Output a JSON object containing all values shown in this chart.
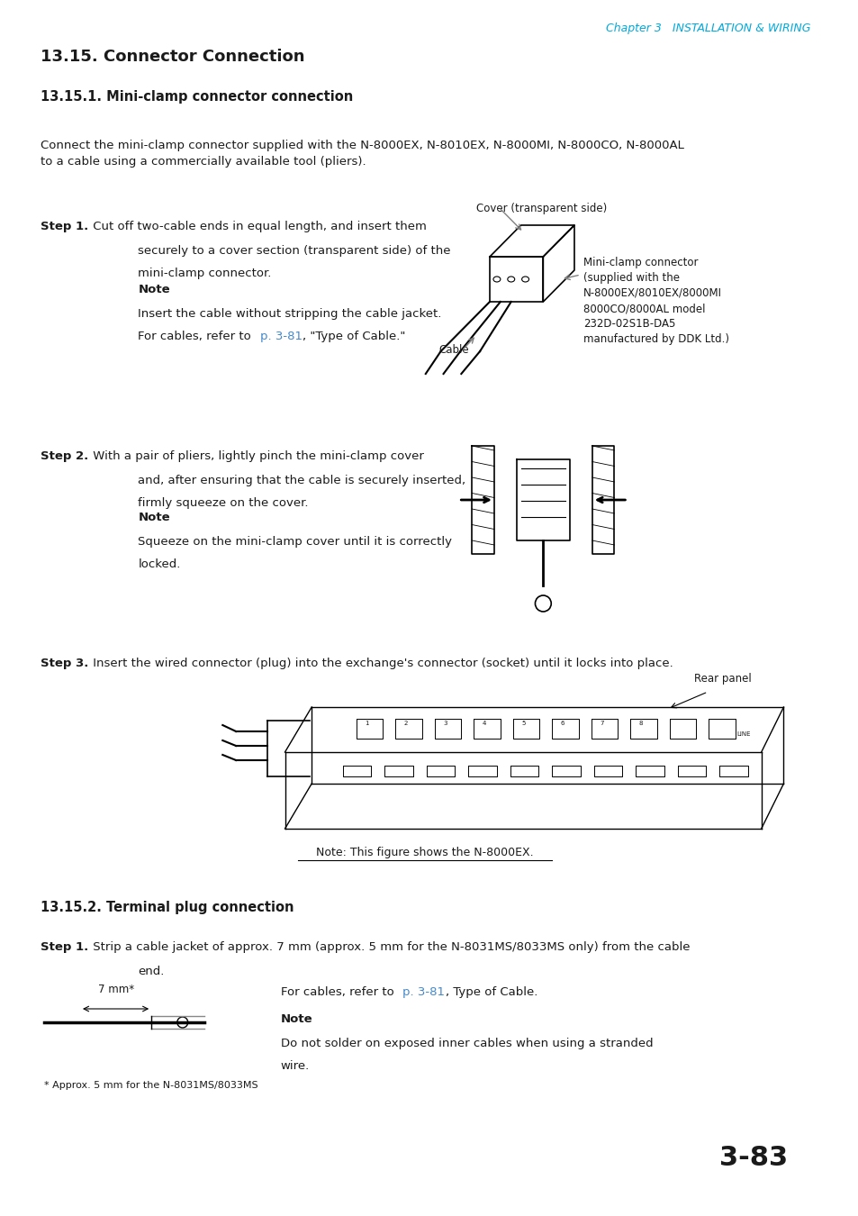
{
  "page_width": 9.54,
  "page_height": 13.5,
  "background_color": "#ffffff",
  "header_text": "Chapter 3   INSTALLATION & WIRING",
  "header_color": "#00aadd",
  "header_italic": true,
  "chapter_bold_italic": "Chapter 3",
  "section_title": "13.15. Connector Connection",
  "section_title_size": 13,
  "subsection1_title": "13.15.1. Mini-clamp connector connection",
  "subsection1_size": 10.5,
  "body_font_size": 9.5,
  "intro_text": "Connect the mini-clamp connector supplied with the N-8000EX, N-8010EX, N-8000MI, N-8000CO, N-8000AL\nto a cable using a commercially available tool (pliers).",
  "step1_bold": "Step 1.",
  "step1_text": " Cut off two-cable ends in equal length, and insert them\n         securely to a cover section (transparent side) of the\n         mini-clamp connector.",
  "note1_bold": "Note",
  "note1_text": "Insert the cable without stripping the cable jacket.\nFor cables, refer to p. 3-81, \"Type of Cable.\"",
  "note1_link": "p. 3-81",
  "note1_link_color": "#4488cc",
  "cover_label": "Cover (transparent side)",
  "cable_label": "Cable",
  "mini_clamp_label": "Mini-clamp connector\n(supplied with the\nN-8000EX/8010EX/8000MI\n8000CO/8000AL model\n232D-02S1B-DA5\nmanufactured by DDK Ltd.)",
  "step2_bold": "Step 2.",
  "step2_text": " With a pair of pliers, lightly pinch the mini-clamp cover\n         and, after ensuring that the cable is securely inserted,\n         firmly squeeze on the cover.",
  "note2_bold": "Note",
  "note2_text": "Squeeze on the mini-clamp cover until it is correctly\nlocked.",
  "step3_bold": "Step 3.",
  "step3_text": " Insert the wired connector (plug) into the exchange's connector (socket) until it locks into place.",
  "rear_panel_label": "Rear panel",
  "note3_text": "Note: This figure shows the N-8000EX.",
  "subsection2_title": "13.15.2. Terminal plug connection",
  "subsection2_size": 10.5,
  "step4_bold": "Step 1.",
  "step4_text": " Strip a cable jacket of approx. 7 mm (approx. 5 mm for the N-8031MS/8033MS only) from the cable\n        end.",
  "mm_label": "7 mm*",
  "for_cables_text": "For cables, refer to p. 3-81, Type of Cable.",
  "for_cables_link": "p. 3-81",
  "for_cables_link_color": "#4488cc",
  "note4_bold": "Note",
  "note4_text": "Do not solder on exposed inner cables when using a stranded\nwire.",
  "approx_note": "* Approx. 5 mm for the N-8031MS/8033MS",
  "page_number": "3-83",
  "page_number_size": 22,
  "text_color": "#1a1a1a",
  "label_color": "#444444"
}
